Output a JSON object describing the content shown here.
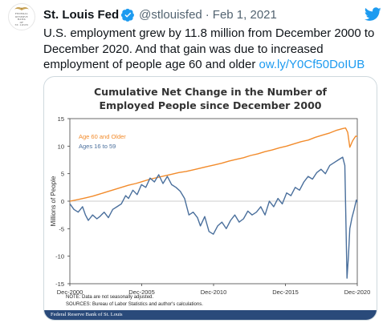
{
  "tweet": {
    "display_name": "St. Louis Fed",
    "handle": "@stlouisfed",
    "date": "Feb 1, 2021",
    "text": "U.S. employment grew by 11.8 million from December 2000 to December 2020. And that gain was due to increased employment of people age 60 and older",
    "link": "ow.ly/Y0Cf50DoIUB"
  },
  "avatar": {
    "lines": [
      "FEDERAL",
      "RESERVE",
      "BANK",
      "OF",
      "ST. LOUIS"
    ]
  },
  "icons": {
    "verified": "verified-badge-icon",
    "bird": "twitter-bird-icon",
    "eagle": "eagle-logo-icon"
  },
  "colors": {
    "link": "#1d9bf0",
    "age60": "#f28b2b",
    "age16": "#4a6f9c",
    "footer": "#2a4a7a"
  },
  "chart_notes": {
    "note": "NOTE: Data are not seasonally adjusted.",
    "sources": "SOURCES: Bureau of Labor Statistics and author's calculations."
  },
  "footer": {
    "text": "Federal Reserve Bank of St. Louis"
  },
  "chart_data": {
    "type": "line",
    "title": "Cumulative Net Change in the Number of Employed People since December 2000",
    "title_lines": [
      "Cumulative Net Change in the Number of",
      "Employed People since December 2000"
    ],
    "ylabel": "Millions of People",
    "xlabel": "",
    "ylim": [
      -15,
      15
    ],
    "yticks": [
      15,
      10,
      5,
      0,
      -5,
      -10,
      -15
    ],
    "xlim": [
      2000.917,
      2020.917
    ],
    "xticks": [
      {
        "value": 2000.917,
        "label": "Dec-2000"
      },
      {
        "value": 2005.917,
        "label": "Dec-2005"
      },
      {
        "value": 2010.917,
        "label": "Dec-2010"
      },
      {
        "value": 2015.917,
        "label": "Dec-2015"
      },
      {
        "value": 2020.917,
        "label": "Dec-2020"
      }
    ],
    "legend_placement": "top-left",
    "grid": false,
    "series": [
      {
        "name": "Age 60 and Older",
        "x": [
          2000.92,
          2001.5,
          2002,
          2002.5,
          2003,
          2003.5,
          2004,
          2004.5,
          2005,
          2005.5,
          2006,
          2006.5,
          2007,
          2007.5,
          2008,
          2008.5,
          2009,
          2009.5,
          2010,
          2010.5,
          2011,
          2011.5,
          2012,
          2012.5,
          2013,
          2013.5,
          2014,
          2014.5,
          2015,
          2015.5,
          2016,
          2016.5,
          2017,
          2017.5,
          2018,
          2018.5,
          2019,
          2019.5,
          2019.9,
          2020.1,
          2020.25,
          2020.4,
          2020.6,
          2020.8,
          2020.92
        ],
        "values": [
          0,
          0.3,
          0.6,
          0.9,
          1.3,
          1.7,
          2.1,
          2.5,
          2.9,
          3.2,
          3.6,
          4.0,
          4.3,
          4.6,
          4.9,
          5.2,
          5.4,
          5.7,
          6.0,
          6.3,
          6.6,
          6.9,
          7.3,
          7.6,
          7.9,
          8.3,
          8.6,
          9.0,
          9.3,
          9.7,
          10.0,
          10.4,
          10.8,
          11.1,
          11.6,
          12.0,
          12.4,
          12.9,
          13.2,
          13.3,
          12.5,
          9.8,
          11.0,
          11.8,
          11.8
        ]
      },
      {
        "name": "Ages 16 to 59",
        "x": [
          2000.92,
          2001.2,
          2001.5,
          2001.8,
          2002,
          2002.2,
          2002.5,
          2002.8,
          2003,
          2003.3,
          2003.6,
          2003.9,
          2004.2,
          2004.5,
          2004.8,
          2005,
          2005.3,
          2005.6,
          2005.9,
          2006.2,
          2006.5,
          2006.8,
          2007.1,
          2007.4,
          2007.7,
          2008,
          2008.3,
          2008.6,
          2008.9,
          2009.2,
          2009.5,
          2009.8,
          2010,
          2010.3,
          2010.6,
          2010.9,
          2011.2,
          2011.5,
          2011.8,
          2012.1,
          2012.4,
          2012.7,
          2013,
          2013.3,
          2013.6,
          2013.9,
          2014.2,
          2014.5,
          2014.8,
          2015.1,
          2015.4,
          2015.7,
          2016,
          2016.3,
          2016.6,
          2016.9,
          2017.2,
          2017.5,
          2017.8,
          2018.1,
          2018.4,
          2018.7,
          2019,
          2019.3,
          2019.6,
          2019.9,
          2020.05,
          2020.2,
          2020.3,
          2020.4,
          2020.55,
          2020.7,
          2020.85,
          2020.92
        ],
        "values": [
          -0.5,
          -1.5,
          -2.0,
          -1.0,
          -2.5,
          -3.5,
          -2.5,
          -3.2,
          -2.8,
          -2.0,
          -3.0,
          -1.5,
          -1.0,
          -0.5,
          1.0,
          0.5,
          2.0,
          1.2,
          3.0,
          2.5,
          4.2,
          3.5,
          4.8,
          3.2,
          4.5,
          3.0,
          2.5,
          1.8,
          0.5,
          -2.5,
          -2.0,
          -3.0,
          -4.5,
          -2.8,
          -5.5,
          -6.0,
          -4.5,
          -3.8,
          -5.0,
          -3.5,
          -2.5,
          -3.8,
          -3.2,
          -1.8,
          -2.5,
          -2.0,
          -1.0,
          -2.5,
          0.0,
          -1.0,
          0.5,
          -0.5,
          1.5,
          1.0,
          2.5,
          2.0,
          3.5,
          4.5,
          4.0,
          5.2,
          5.8,
          5.0,
          6.5,
          7.0,
          7.5,
          8.0,
          6.5,
          -14.0,
          -10.0,
          -5.0,
          -3.0,
          -1.5,
          0.2,
          -0.2
        ]
      }
    ]
  }
}
